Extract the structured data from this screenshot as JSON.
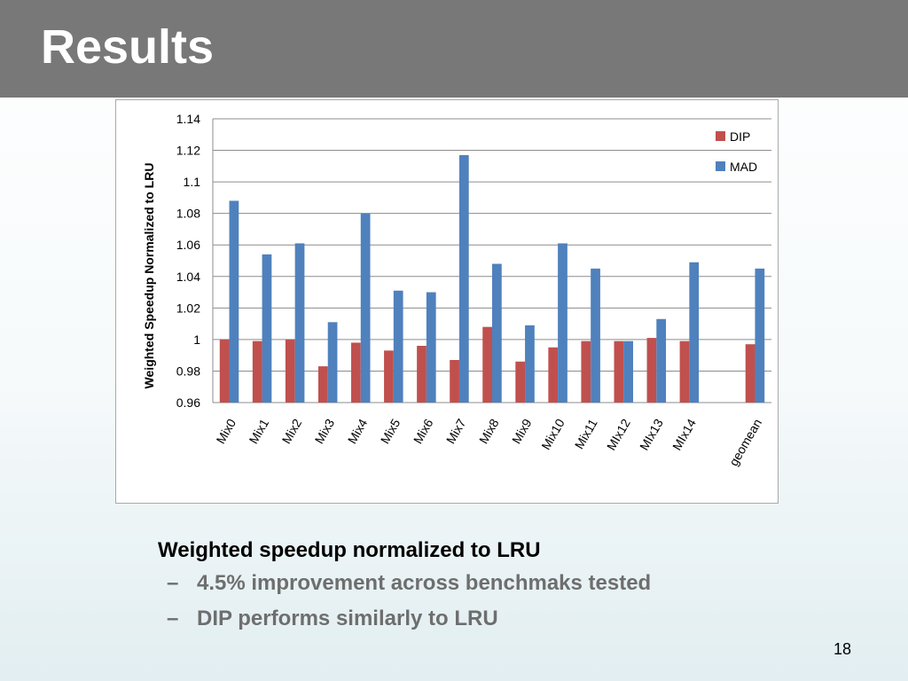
{
  "slide": {
    "title": "Results",
    "page_number": "18",
    "bullets": {
      "main": "Weighted speedup normalized to LRU",
      "subs": [
        "4.5% improvement across benchmaks tested",
        "DIP performs similarly to LRU"
      ]
    }
  },
  "chart_data": {
    "type": "bar",
    "title": "",
    "xlabel": "",
    "ylabel": "Weighted Speedup Normalized to LRU",
    "ylim": [
      0.96,
      1.14
    ],
    "yticks": [
      "1.14",
      "1.12",
      "1.1",
      "1.08",
      "1.06",
      "1.04",
      "1.02",
      "1",
      "0.98",
      "0.96"
    ],
    "grid": true,
    "legend_position": "top-right",
    "categories": [
      "Mix0",
      "Mix1",
      "Mix2",
      "Mix3",
      "Mix4",
      "Mix5",
      "Mix6",
      "Mix7",
      "Mix8",
      "Mix9",
      "Mix10",
      "Mix11",
      "MIx12",
      "MIx13",
      "MIx14",
      "",
      "geomean"
    ],
    "series": [
      {
        "name": "DIP",
        "color": "#c0504d",
        "values": [
          1.0,
          0.999,
          1.0,
          0.983,
          0.998,
          0.993,
          0.996,
          0.987,
          1.008,
          0.986,
          0.995,
          0.999,
          0.999,
          1.001,
          0.999,
          null,
          0.997
        ]
      },
      {
        "name": "MAD",
        "color": "#4f81bd",
        "values": [
          1.088,
          1.054,
          1.061,
          1.011,
          1.08,
          1.031,
          1.03,
          1.117,
          1.048,
          1.009,
          1.061,
          1.045,
          0.999,
          1.013,
          1.049,
          null,
          1.045
        ]
      }
    ]
  }
}
